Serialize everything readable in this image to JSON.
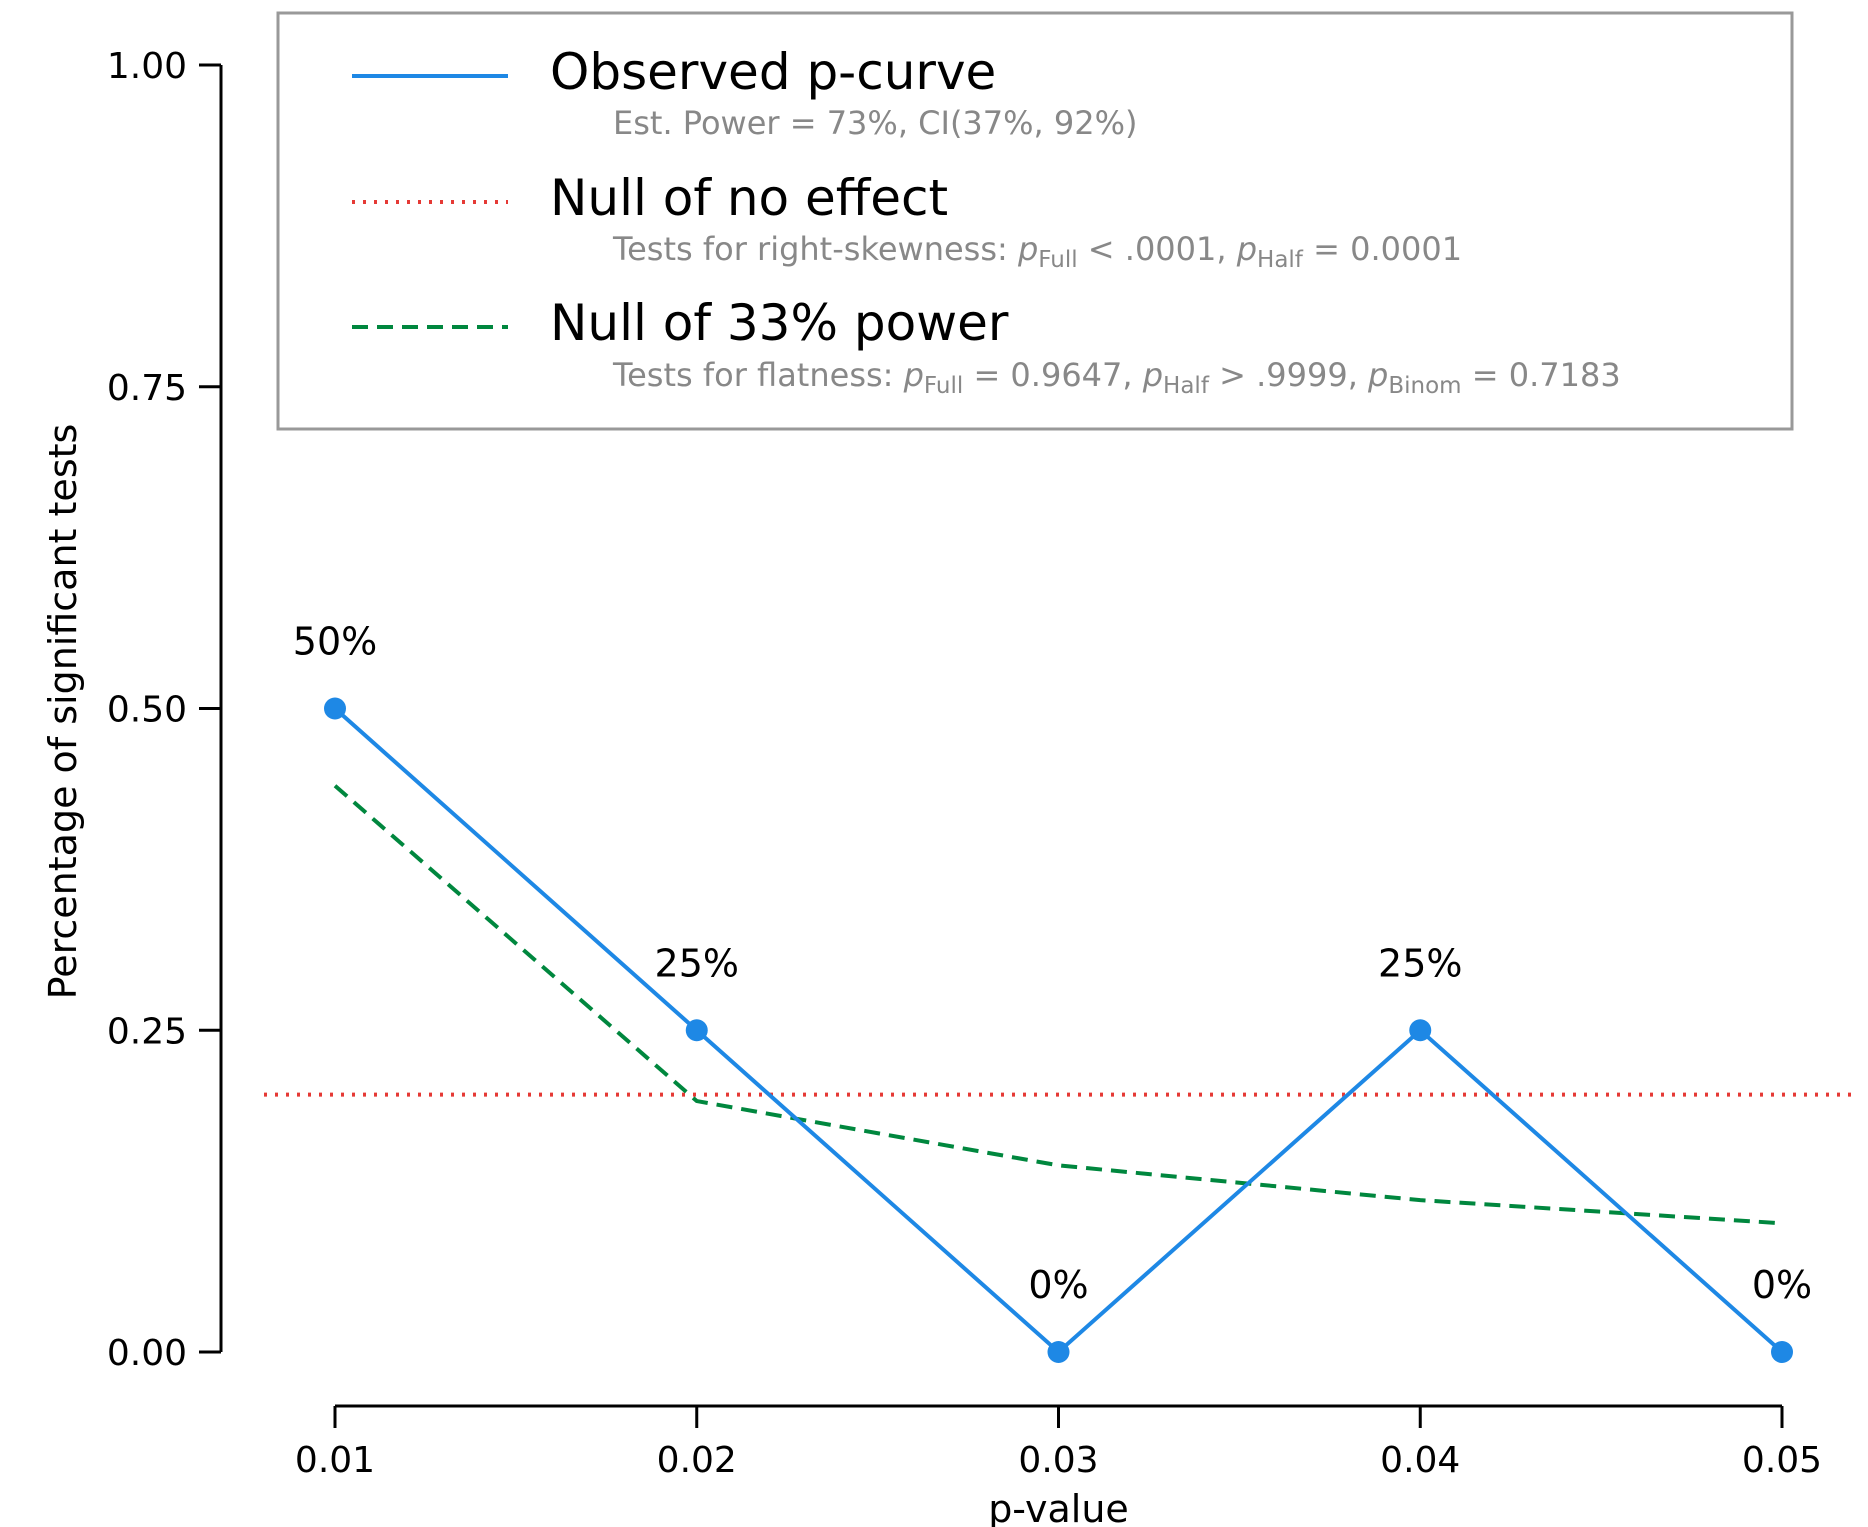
{
  "chart_data": {
    "type": "line",
    "x": [
      0.01,
      0.02,
      0.03,
      0.04,
      0.05
    ],
    "x_tick_labels": [
      "0.01",
      "0.02",
      "0.03",
      "0.04",
      "0.05"
    ],
    "xlabel": "p-value",
    "ylabel": "Percentage of significant tests",
    "ylim": [
      0,
      1
    ],
    "y_ticks": [
      0,
      0.25,
      0.5,
      0.75,
      1.0
    ],
    "y_tick_labels": [
      "0.00",
      "0.25",
      "0.50",
      "0.75",
      "1.00"
    ],
    "grid": false,
    "legend_position": "top",
    "series": [
      {
        "name": "Observed p-curve",
        "values": [
          0.5,
          0.25,
          0.0,
          0.25,
          0.0
        ],
        "data_labels": [
          "50%",
          "25%",
          "0%",
          "25%",
          "0%"
        ],
        "color": "#1E88E5",
        "style": "solid",
        "markers": true
      },
      {
        "name": "Null of no effect",
        "values": [
          0.2,
          0.2,
          0.2,
          0.2,
          0.2
        ],
        "color": "#E53935",
        "style": "dotted"
      },
      {
        "name": "Null of 33% power",
        "values": [
          0.44,
          0.195,
          0.145,
          0.118,
          0.1
        ],
        "color": "#00873E",
        "style": "dashed"
      }
    ],
    "legend": [
      {
        "name": "Observed p-curve",
        "subtitle": [
          "Est. Power = 73%, CI(37%, 92%)"
        ]
      },
      {
        "name": "Null of no effect",
        "subtitle": [
          "Tests for right-skewness: ",
          "p",
          "Full",
          " < .0001, ",
          "p",
          "Half",
          " = 0.0001"
        ]
      },
      {
        "name": "Null of 33% power",
        "subtitle": [
          "Tests for flatness: ",
          "p",
          "Full",
          " = 0.9647, ",
          "p",
          "Half",
          " > .9999, ",
          "p",
          "Binom",
          " = 0.7183"
        ]
      }
    ]
  }
}
